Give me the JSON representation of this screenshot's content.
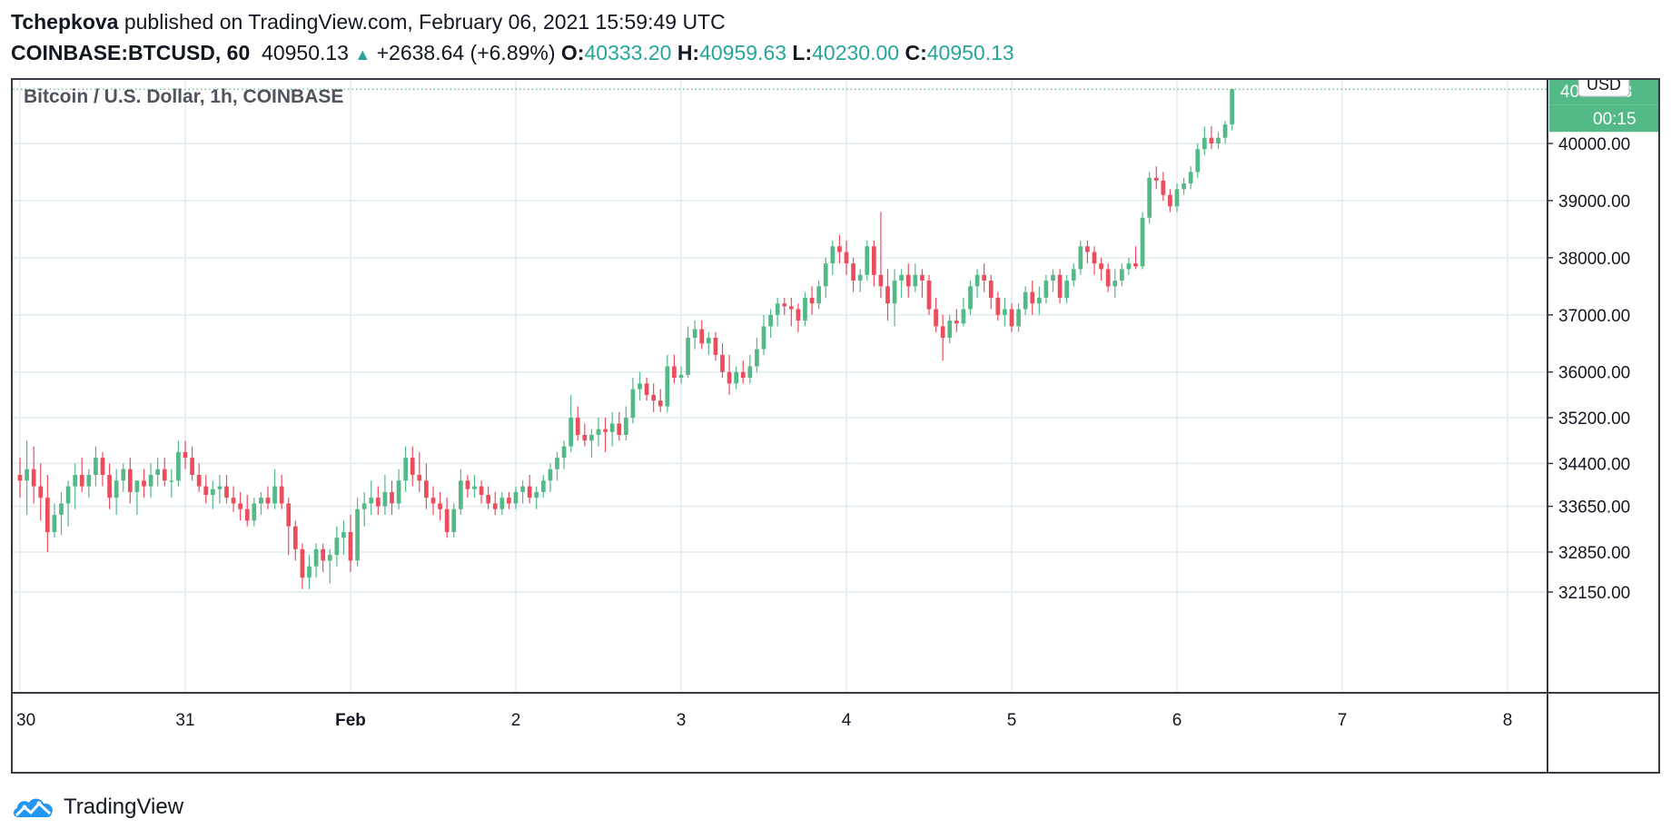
{
  "header": {
    "author": "Tchepkova",
    "published_text": "published on TradingView.com, February 06, 2021 15:59:49 UTC",
    "symbol": "COINBASE:BTCUSD, 60",
    "last_price": "40950.13",
    "change": "+2638.64 (+6.89%)",
    "open_label": "O:",
    "open": "40333.20",
    "high_label": "H:",
    "high": "40959.63",
    "low_label": "L:",
    "low": "40230.00",
    "close_label": "C:",
    "close": "40950.13"
  },
  "footer": {
    "brand": "TradingView"
  },
  "colors": {
    "up": "#53b987",
    "down": "#eb4d5c",
    "grid": "#e1ecf2",
    "border": "#363a45",
    "price_tag": "#53b987"
  },
  "chart_data": {
    "type": "candlestick",
    "title": "Bitcoin / U.S. Dollar, 1h, COINBASE",
    "currency_badge": "USD",
    "last_price_tag": "40950.13",
    "countdown_tag": "00:15",
    "x_ticks": [
      "30",
      "31",
      "Feb",
      "2",
      "3",
      "4",
      "5",
      "6",
      "7",
      "8"
    ],
    "y_ticks": [
      "40000.00",
      "39000.00",
      "38000.00",
      "37000.00",
      "36000.00",
      "35200.00",
      "34400.00",
      "33650.00",
      "32850.00",
      "32150.00"
    ],
    "candles": [
      [
        34200,
        34500,
        33800,
        34100
      ],
      [
        34100,
        34800,
        33500,
        34300
      ],
      [
        34300,
        34700,
        33700,
        34000
      ],
      [
        34000,
        34400,
        33400,
        33800
      ],
      [
        33800,
        34200,
        32850,
        33200
      ],
      [
        33200,
        33700,
        33100,
        33500
      ],
      [
        33500,
        33900,
        33150,
        33700
      ],
      [
        33700,
        34100,
        33300,
        34000
      ],
      [
        34000,
        34400,
        33600,
        34200
      ],
      [
        34200,
        34500,
        33900,
        34000
      ],
      [
        34000,
        34300,
        33800,
        34200
      ],
      [
        34200,
        34700,
        34000,
        34500
      ],
      [
        34500,
        34600,
        34000,
        34200
      ],
      [
        34200,
        34400,
        33600,
        33800
      ],
      [
        33800,
        34300,
        33500,
        34100
      ],
      [
        34100,
        34400,
        33900,
        34300
      ],
      [
        34300,
        34500,
        33700,
        33900
      ],
      [
        33900,
        34100,
        33500,
        34100
      ],
      [
        34100,
        34300,
        33800,
        34000
      ],
      [
        34000,
        34400,
        33800,
        34200
      ],
      [
        34200,
        34500,
        34000,
        34300
      ],
      [
        34300,
        34500,
        34000,
        34100
      ],
      [
        34100,
        34300,
        33800,
        34100
      ],
      [
        34100,
        34800,
        34000,
        34600
      ],
      [
        34600,
        34800,
        34300,
        34500
      ],
      [
        34500,
        34700,
        34100,
        34200
      ],
      [
        34200,
        34400,
        33900,
        34000
      ],
      [
        34000,
        34200,
        33700,
        33850
      ],
      [
        33850,
        34100,
        33600,
        33950
      ],
      [
        33950,
        34200,
        33700,
        34000
      ],
      [
        34000,
        34200,
        33700,
        33800
      ],
      [
        33800,
        34000,
        33550,
        33700
      ],
      [
        33700,
        33900,
        33400,
        33600
      ],
      [
        33600,
        33850,
        33300,
        33400
      ],
      [
        33400,
        33800,
        33300,
        33700
      ],
      [
        33700,
        33900,
        33500,
        33800
      ],
      [
        33800,
        34000,
        33600,
        33700
      ],
      [
        33700,
        34300,
        33600,
        34000
      ],
      [
        34000,
        34200,
        33600,
        33700
      ],
      [
        33700,
        33800,
        32800,
        33300
      ],
      [
        33300,
        33400,
        32700,
        32900
      ],
      [
        32900,
        33000,
        32200,
        32400
      ],
      [
        32400,
        32800,
        32200,
        32600
      ],
      [
        32600,
        33000,
        32400,
        32900
      ],
      [
        32900,
        33000,
        32500,
        32700
      ],
      [
        32700,
        32900,
        32300,
        32800
      ],
      [
        32800,
        33300,
        32600,
        33100
      ],
      [
        33100,
        33400,
        32800,
        33200
      ],
      [
        33200,
        33500,
        32500,
        32700
      ],
      [
        32700,
        33800,
        32600,
        33600
      ],
      [
        33600,
        33900,
        33300,
        33700
      ],
      [
        33700,
        34100,
        33500,
        33800
      ],
      [
        33800,
        34000,
        33500,
        33650
      ],
      [
        33650,
        34200,
        33500,
        33900
      ],
      [
        33900,
        34100,
        33500,
        33700
      ],
      [
        33700,
        34300,
        33600,
        34100
      ],
      [
        34100,
        34700,
        33900,
        34500
      ],
      [
        34500,
        34700,
        34000,
        34200
      ],
      [
        34200,
        34600,
        33900,
        34100
      ],
      [
        34100,
        34400,
        33600,
        33800
      ],
      [
        33800,
        34000,
        33500,
        33700
      ],
      [
        33700,
        33900,
        33400,
        33600
      ],
      [
        33600,
        33800,
        33100,
        33200
      ],
      [
        33200,
        33700,
        33100,
        33600
      ],
      [
        33600,
        34300,
        33500,
        34100
      ],
      [
        34100,
        34200,
        33800,
        33950
      ],
      [
        33950,
        34200,
        33800,
        34000
      ],
      [
        34000,
        34100,
        33700,
        33850
      ],
      [
        33850,
        34000,
        33600,
        33700
      ],
      [
        33700,
        33900,
        33500,
        33600
      ],
      [
        33600,
        33900,
        33500,
        33800
      ],
      [
        33800,
        33900,
        33600,
        33700
      ],
      [
        33700,
        34000,
        33600,
        33900
      ],
      [
        33900,
        34100,
        33700,
        34000
      ],
      [
        34000,
        34200,
        33700,
        33800
      ],
      [
        33800,
        34000,
        33600,
        33900
      ],
      [
        33900,
        34200,
        33800,
        34100
      ],
      [
        34100,
        34400,
        33900,
        34300
      ],
      [
        34300,
        34600,
        34100,
        34500
      ],
      [
        34500,
        34800,
        34300,
        34700
      ],
      [
        34700,
        35600,
        34600,
        35200
      ],
      [
        35200,
        35400,
        34800,
        34900
      ],
      [
        34900,
        35100,
        34700,
        34800
      ],
      [
        34800,
        35000,
        34500,
        34900
      ],
      [
        34900,
        35200,
        34700,
        35000
      ],
      [
        35000,
        35200,
        34600,
        34950
      ],
      [
        34950,
        35300,
        34700,
        35100
      ],
      [
        35100,
        35300,
        34800,
        34900
      ],
      [
        34900,
        35400,
        34800,
        35200
      ],
      [
        35200,
        35900,
        35100,
        35700
      ],
      [
        35700,
        36000,
        35500,
        35800
      ],
      [
        35800,
        35900,
        35500,
        35600
      ],
      [
        35600,
        35800,
        35300,
        35500
      ],
      [
        35500,
        35700,
        35300,
        35400
      ],
      [
        35400,
        36300,
        35300,
        36100
      ],
      [
        36100,
        36300,
        35800,
        35900
      ],
      [
        35900,
        36100,
        35800,
        35950
      ],
      [
        35950,
        36800,
        35900,
        36600
      ],
      [
        36600,
        36900,
        36400,
        36750
      ],
      [
        36750,
        36900,
        36400,
        36500
      ],
      [
        36500,
        36700,
        36300,
        36600
      ],
      [
        36600,
        36700,
        36200,
        36300
      ],
      [
        36300,
        36500,
        35900,
        36000
      ],
      [
        36000,
        36300,
        35600,
        35800
      ],
      [
        35800,
        36100,
        35700,
        36000
      ],
      [
        36000,
        36200,
        35800,
        35900
      ],
      [
        35900,
        36300,
        35800,
        36100
      ],
      [
        36100,
        36600,
        36000,
        36400
      ],
      [
        36400,
        37000,
        36300,
        36800
      ],
      [
        36800,
        37100,
        36600,
        37000
      ],
      [
        37000,
        37300,
        36800,
        37200
      ],
      [
        37200,
        37300,
        37000,
        37150
      ],
      [
        37150,
        37300,
        36800,
        37100
      ],
      [
        37100,
        37200,
        36700,
        36900
      ],
      [
        36900,
        37400,
        36800,
        37300
      ],
      [
        37300,
        37500,
        37000,
        37200
      ],
      [
        37200,
        37600,
        37100,
        37500
      ],
      [
        37500,
        38000,
        37300,
        37900
      ],
      [
        37900,
        38300,
        37700,
        38200
      ],
      [
        38200,
        38400,
        37900,
        38100
      ],
      [
        38100,
        38300,
        37700,
        37900
      ],
      [
        37900,
        38000,
        37400,
        37600
      ],
      [
        37600,
        37800,
        37400,
        37700
      ],
      [
        37700,
        38300,
        37600,
        38200
      ],
      [
        38200,
        38300,
        37500,
        37700
      ],
      [
        37700,
        38800,
        37300,
        37500
      ],
      [
        37500,
        37800,
        36900,
        37200
      ],
      [
        37200,
        37800,
        36800,
        37600
      ],
      [
        37600,
        37800,
        37300,
        37700
      ],
      [
        37700,
        37900,
        37300,
        37500
      ],
      [
        37500,
        37900,
        37400,
        37700
      ],
      [
        37700,
        37800,
        37300,
        37600
      ],
      [
        37600,
        37700,
        37000,
        37100
      ],
      [
        37100,
        37300,
        36700,
        36800
      ],
      [
        36800,
        37000,
        36200,
        36600
      ],
      [
        36600,
        37000,
        36500,
        36900
      ],
      [
        36900,
        37100,
        36700,
        36850
      ],
      [
        36850,
        37300,
        36800,
        37100
      ],
      [
        37100,
        37600,
        37000,
        37500
      ],
      [
        37500,
        37800,
        37300,
        37700
      ],
      [
        37700,
        37900,
        37400,
        37600
      ],
      [
        37600,
        37700,
        37100,
        37300
      ],
      [
        37300,
        37400,
        36900,
        37000
      ],
      [
        37000,
        37300,
        36800,
        37100
      ],
      [
        37100,
        37200,
        36700,
        36800
      ],
      [
        36800,
        37200,
        36700,
        37100
      ],
      [
        37100,
        37500,
        37000,
        37400
      ],
      [
        37400,
        37600,
        37000,
        37200
      ],
      [
        37200,
        37500,
        37000,
        37300
      ],
      [
        37300,
        37700,
        37200,
        37600
      ],
      [
        37600,
        37800,
        37400,
        37700
      ],
      [
        37700,
        37800,
        37200,
        37300
      ],
      [
        37300,
        37700,
        37200,
        37600
      ],
      [
        37600,
        37900,
        37500,
        37800
      ],
      [
        37800,
        38300,
        37700,
        38200
      ],
      [
        38200,
        38300,
        37900,
        38100
      ],
      [
        38100,
        38200,
        37700,
        37900
      ],
      [
        37900,
        38000,
        37600,
        37800
      ],
      [
        37800,
        37900,
        37400,
        37500
      ],
      [
        37500,
        37800,
        37300,
        37600
      ],
      [
        37600,
        37900,
        37500,
        37800
      ],
      [
        37800,
        38000,
        37700,
        37900
      ],
      [
        37900,
        38200,
        37800,
        37850
      ],
      [
        37850,
        38800,
        37800,
        38700
      ],
      [
        38700,
        39500,
        38600,
        39400
      ],
      [
        39400,
        39600,
        39200,
        39350
      ],
      [
        39350,
        39500,
        39000,
        39100
      ],
      [
        39100,
        39200,
        38800,
        38900
      ],
      [
        38900,
        39300,
        38800,
        39200
      ],
      [
        39200,
        39400,
        39100,
        39300
      ],
      [
        39300,
        39600,
        39200,
        39500
      ],
      [
        39500,
        40000,
        39400,
        39900
      ],
      [
        39900,
        40300,
        39800,
        40100
      ],
      [
        40100,
        40300,
        39900,
        40000
      ],
      [
        40000,
        40200,
        39900,
        40100
      ],
      [
        40100,
        40400,
        40000,
        40333
      ],
      [
        40333,
        40960,
        40230,
        40950
      ]
    ]
  }
}
